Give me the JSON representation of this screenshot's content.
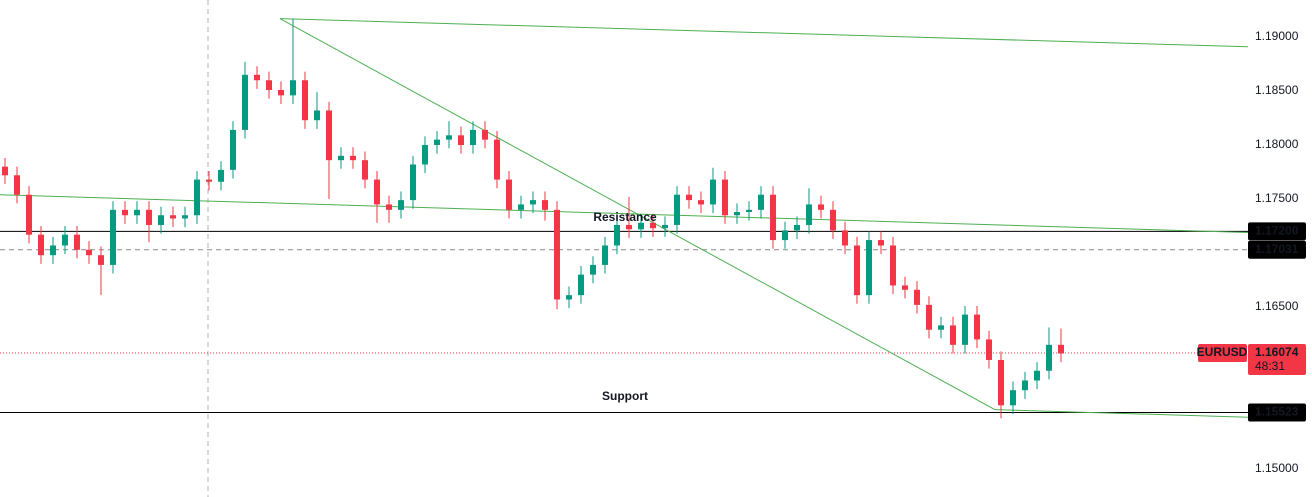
{
  "chart_data": {
    "type": "candlestick",
    "ylim": [
      1.14741,
      1.19343
    ],
    "yticks": [
      {
        "value": 1.19,
        "label": "1.19000"
      },
      {
        "value": 1.185,
        "label": "1.18500"
      },
      {
        "value": 1.18,
        "label": "1.18000"
      },
      {
        "value": 1.175,
        "label": "1.17500"
      },
      {
        "value": 1.165,
        "label": "1.16500"
      },
      {
        "value": 1.15,
        "label": "1.15000"
      }
    ],
    "series": [
      {
        "name": "EURUSD",
        "up_color": "#089981",
        "down_color": "#f23645",
        "open": [
          1.178,
          1.1772,
          1.1754,
          1.1717,
          1.1698,
          1.1707,
          1.1717,
          1.1703,
          1.1698,
          1.1689,
          1.174,
          1.1735,
          1.174,
          1.1726,
          1.1735,
          1.1732,
          1.1735,
          1.1768,
          1.1766,
          1.1777,
          1.1814,
          1.1865,
          1.186,
          1.1851,
          1.1846,
          1.186,
          1.1823,
          1.1832,
          1.1786,
          1.179,
          1.1786,
          1.1768,
          1.1745,
          1.174,
          1.1749,
          1.1782,
          1.18,
          1.1805,
          1.1809,
          1.18,
          1.1814,
          1.1805,
          1.1768,
          1.174,
          1.1745,
          1.1749,
          1.174,
          1.1657,
          1.1661,
          1.168,
          1.1689,
          1.1707,
          1.1726,
          1.1722,
          1.1728,
          1.1723,
          1.1726,
          1.1754,
          1.1749,
          1.1745,
          1.1768,
          1.1735,
          1.1738,
          1.174,
          1.1754,
          1.1712,
          1.1721,
          1.1726,
          1.1745,
          1.174,
          1.1721,
          1.1707,
          1.1661,
          1.1712,
          1.1707,
          1.167,
          1.1666,
          1.1652,
          1.1629,
          1.1633,
          1.1615,
          1.1643,
          1.162,
          1.1601,
          1.1559,
          1.1573,
          1.1582,
          1.1591,
          1.1615
        ],
        "high": [
          1.1788,
          1.178,
          1.1762,
          1.1725,
          1.1715,
          1.1725,
          1.1725,
          1.1711,
          1.1706,
          1.1748,
          1.1748,
          1.1748,
          1.1748,
          1.1743,
          1.1743,
          1.1743,
          1.1776,
          1.1776,
          1.1785,
          1.1822,
          1.1877,
          1.1873,
          1.1868,
          1.1859,
          1.1917,
          1.1868,
          1.1849,
          1.184,
          1.1798,
          1.1798,
          1.1794,
          1.1776,
          1.1753,
          1.1757,
          1.179,
          1.1808,
          1.1813,
          1.1822,
          1.1817,
          1.1822,
          1.1822,
          1.1813,
          1.1776,
          1.1753,
          1.1757,
          1.1757,
          1.1748,
          1.1669,
          1.1688,
          1.1697,
          1.1715,
          1.1734,
          1.1752,
          1.1736,
          1.1736,
          1.1734,
          1.1762,
          1.1762,
          1.1757,
          1.1779,
          1.1776,
          1.1746,
          1.1748,
          1.1762,
          1.1762,
          1.1729,
          1.1734,
          1.176,
          1.1753,
          1.1748,
          1.1729,
          1.1715,
          1.172,
          1.172,
          1.1715,
          1.1678,
          1.1674,
          1.166,
          1.1641,
          1.1641,
          1.1651,
          1.1651,
          1.1628,
          1.1609,
          1.1581,
          1.159,
          1.1599,
          1.1631,
          1.163
        ],
        "low": [
          1.1764,
          1.1746,
          1.1709,
          1.169,
          1.169,
          1.1699,
          1.1695,
          1.169,
          1.1661,
          1.1681,
          1.1727,
          1.1727,
          1.171,
          1.1718,
          1.1724,
          1.1724,
          1.1727,
          1.1758,
          1.1758,
          1.1769,
          1.1806,
          1.1852,
          1.1843,
          1.1838,
          1.1838,
          1.1815,
          1.1815,
          1.175,
          1.1778,
          1.1778,
          1.176,
          1.1728,
          1.1728,
          1.1732,
          1.1741,
          1.1774,
          1.1792,
          1.1797,
          1.1792,
          1.1792,
          1.1797,
          1.176,
          1.1732,
          1.1732,
          1.1737,
          1.173,
          1.1648,
          1.1649,
          1.1653,
          1.1672,
          1.1681,
          1.1699,
          1.1714,
          1.1714,
          1.1715,
          1.1715,
          1.1718,
          1.1741,
          1.1737,
          1.1737,
          1.1727,
          1.1727,
          1.173,
          1.1732,
          1.1704,
          1.1704,
          1.1713,
          1.1718,
          1.1732,
          1.1713,
          1.1699,
          1.1653,
          1.1653,
          1.1699,
          1.1662,
          1.1658,
          1.1644,
          1.1621,
          1.1621,
          1.1607,
          1.1607,
          1.1612,
          1.1593,
          1.1547,
          1.1551,
          1.1565,
          1.1574,
          1.1583,
          1.1599
        ],
        "close": [
          1.1772,
          1.1754,
          1.1717,
          1.1698,
          1.1707,
          1.1717,
          1.1703,
          1.1698,
          1.1689,
          1.174,
          1.1735,
          1.174,
          1.1726,
          1.1735,
          1.1732,
          1.1735,
          1.1768,
          1.1766,
          1.1777,
          1.1814,
          1.1865,
          1.186,
          1.1851,
          1.1846,
          1.186,
          1.1823,
          1.1832,
          1.1786,
          1.179,
          1.1786,
          1.1768,
          1.1745,
          1.174,
          1.1749,
          1.1782,
          1.18,
          1.1805,
          1.1809,
          1.18,
          1.1814,
          1.1805,
          1.1768,
          1.174,
          1.1745,
          1.1749,
          1.174,
          1.1657,
          1.1661,
          1.168,
          1.1689,
          1.1707,
          1.1726,
          1.1722,
          1.1728,
          1.1723,
          1.1726,
          1.1754,
          1.1749,
          1.1745,
          1.1768,
          1.1735,
          1.1738,
          1.174,
          1.1754,
          1.1712,
          1.1721,
          1.1726,
          1.1745,
          1.174,
          1.1721,
          1.1707,
          1.1661,
          1.1712,
          1.1707,
          1.167,
          1.1666,
          1.1652,
          1.1629,
          1.1633,
          1.1615,
          1.1643,
          1.162,
          1.1601,
          1.1559,
          1.1573,
          1.1582,
          1.1591,
          1.1615,
          1.1607
        ]
      }
    ],
    "price_levels": [
      {
        "value": 1.172,
        "label": "1.17200",
        "style": "solid",
        "color": "#000000"
      },
      {
        "value": 1.17031,
        "label": "1.17031",
        "style": "dashed",
        "color": "#888888"
      },
      {
        "value": 1.15523,
        "label": "1.15523",
        "style": "solid",
        "color": "#000000"
      }
    ],
    "current_price": {
      "value": 1.16074,
      "label": "1.16074",
      "countdown": "48:31",
      "color": "#f23645"
    },
    "trendlines": [
      {
        "x": [
          22.92,
          103.58
        ],
        "y": [
          1.1917,
          1.1891
        ],
        "color": "#4caf50"
      },
      {
        "x": [
          22.92,
          82.5
        ],
        "y": [
          1.1917,
          1.1555
        ],
        "color": "#4caf50"
      },
      {
        "x": [
          -0.42,
          103.58
        ],
        "y": [
          1.1754,
          1.1719
        ],
        "color": "#4caf50"
      },
      {
        "x": [
          82.5,
          103.58
        ],
        "y": [
          1.1555,
          1.1548
        ],
        "color": "#4caf50"
      }
    ],
    "annotations": [
      {
        "text": "Resistance",
        "color": "#2962ff"
      },
      {
        "text": "Support",
        "color": "#f23645"
      }
    ]
  }
}
